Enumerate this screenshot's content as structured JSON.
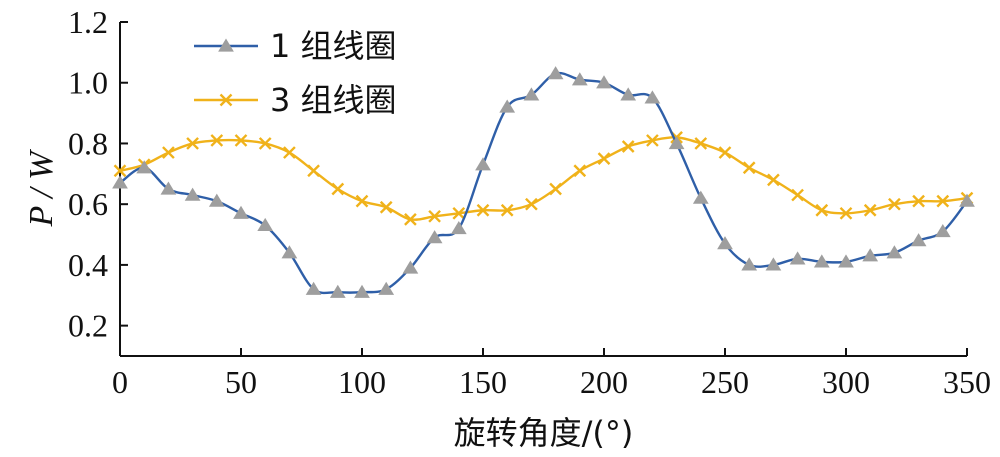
{
  "chart_data": {
    "type": "line",
    "title": "",
    "xlabel": "旋转角度/(°)",
    "ylabel": "P / W",
    "xlim": [
      0,
      350
    ],
    "ylim": [
      0.1,
      1.2
    ],
    "xticks": [
      0,
      50,
      100,
      150,
      200,
      250,
      300,
      350
    ],
    "yticks": [
      0.2,
      0.4,
      0.6,
      0.8,
      1.0,
      1.2
    ],
    "xtick_labels": [
      "0",
      "50",
      "100",
      "150",
      "200",
      "250",
      "300",
      "350"
    ],
    "ytick_labels": [
      "0.2",
      "0.4",
      "0.6",
      "0.8",
      "1.0",
      "1.2"
    ],
    "grid": false,
    "legend_position": "top-left",
    "series": [
      {
        "name": "1 组线圈",
        "color": "#2f5fa8",
        "marker": "triangle",
        "marker_color": "#9e9e9e",
        "x": [
          0,
          10,
          20,
          30,
          40,
          50,
          60,
          70,
          80,
          90,
          100,
          110,
          120,
          130,
          140,
          150,
          160,
          170,
          180,
          190,
          200,
          210,
          220,
          230,
          240,
          250,
          260,
          270,
          280,
          290,
          300,
          310,
          320,
          330,
          340,
          350
        ],
        "values": [
          0.67,
          0.72,
          0.65,
          0.63,
          0.61,
          0.57,
          0.53,
          0.44,
          0.32,
          0.31,
          0.31,
          0.32,
          0.39,
          0.49,
          0.52,
          0.73,
          0.92,
          0.96,
          1.03,
          1.01,
          1.0,
          0.96,
          0.95,
          0.8,
          0.62,
          0.47,
          0.4,
          0.4,
          0.42,
          0.41,
          0.41,
          0.43,
          0.44,
          0.48,
          0.51,
          0.61
        ]
      },
      {
        "name": "3 组线圈",
        "color": "#f0b21a",
        "marker": "x",
        "marker_color": "#f0b21a",
        "x": [
          0,
          10,
          20,
          30,
          40,
          50,
          60,
          70,
          80,
          90,
          100,
          110,
          120,
          130,
          140,
          150,
          160,
          170,
          180,
          190,
          200,
          210,
          220,
          230,
          240,
          250,
          260,
          270,
          280,
          290,
          300,
          310,
          320,
          330,
          340,
          350
        ],
        "values": [
          0.71,
          0.73,
          0.77,
          0.8,
          0.81,
          0.81,
          0.8,
          0.77,
          0.71,
          0.65,
          0.61,
          0.59,
          0.55,
          0.56,
          0.57,
          0.58,
          0.58,
          0.6,
          0.65,
          0.71,
          0.75,
          0.79,
          0.81,
          0.82,
          0.8,
          0.77,
          0.72,
          0.68,
          0.63,
          0.58,
          0.57,
          0.58,
          0.6,
          0.61,
          0.61,
          0.62
        ]
      }
    ]
  }
}
